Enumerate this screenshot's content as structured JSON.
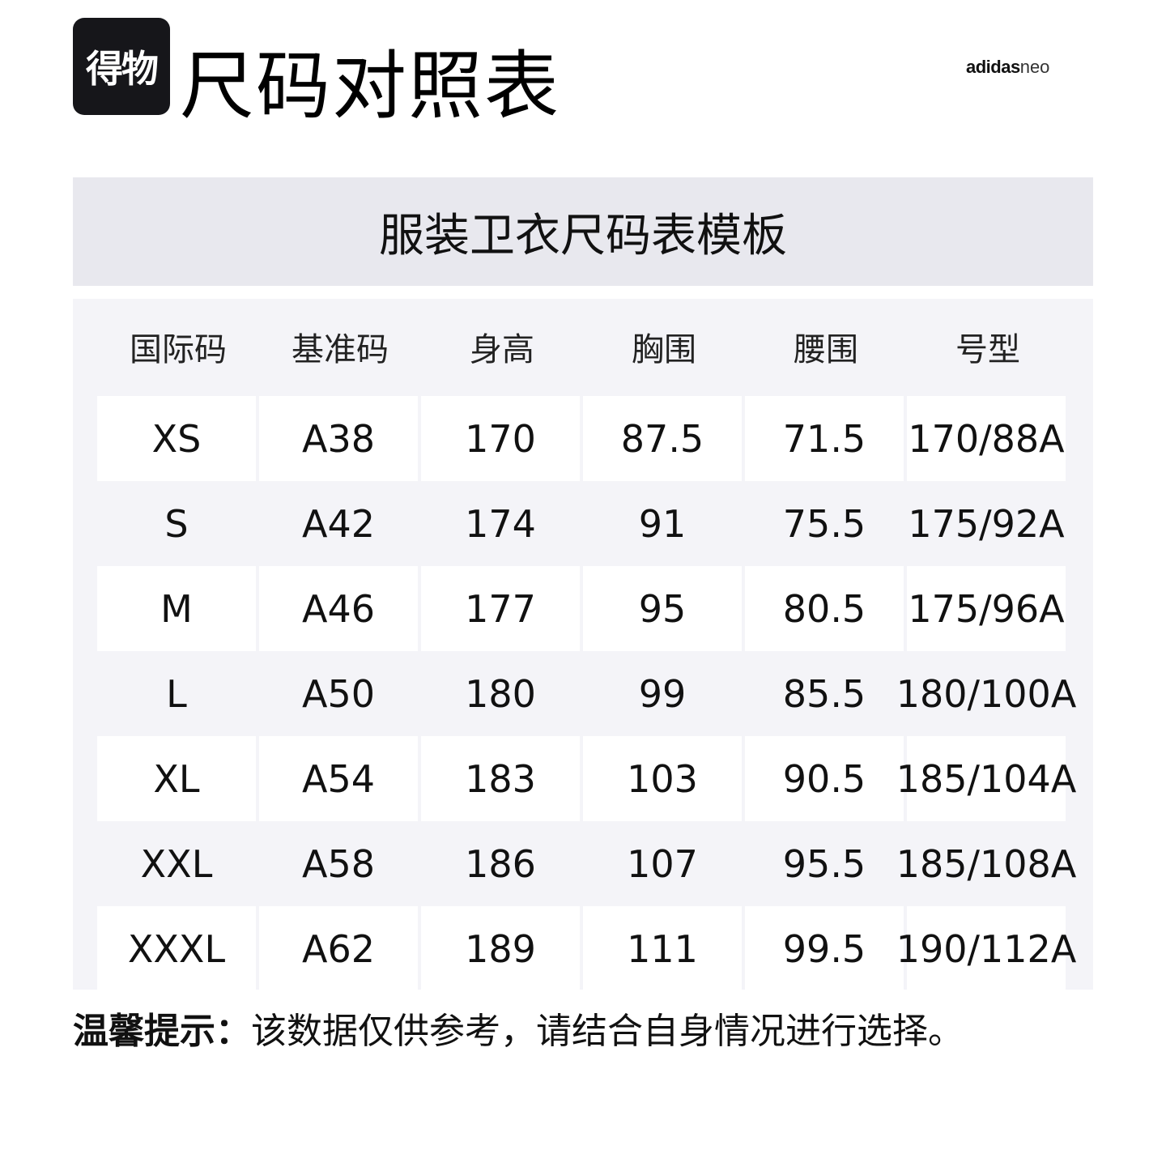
{
  "header": {
    "logo_text": "得物",
    "title": "尺码对照表",
    "brand_bold": "adidas",
    "brand_light": "neo"
  },
  "table": {
    "caption": "服装卫衣尺码表模板",
    "columns": [
      "国际码",
      "基准码",
      "身高",
      "胸围",
      "腰围",
      "号型"
    ],
    "rows": [
      [
        "XS",
        "A38",
        "170",
        "87.5",
        "71.5",
        "170/88A"
      ],
      [
        "S",
        "A42",
        "174",
        "91",
        "75.5",
        "175/92A"
      ],
      [
        "M",
        "A46",
        "177",
        "95",
        "80.5",
        "175/96A"
      ],
      [
        "L",
        "A50",
        "180",
        "99",
        "85.5",
        "180/100A"
      ],
      [
        "XL",
        "A54",
        "183",
        "103",
        "90.5",
        "185/104A"
      ],
      [
        "XXL",
        "A58",
        "186",
        "107",
        "95.5",
        "185/108A"
      ],
      [
        "XXXL",
        "A62",
        "189",
        "111",
        "99.5",
        "190/112A"
      ]
    ]
  },
  "note": {
    "label": "温馨提示：",
    "text": "该数据仅供参考，请结合自身情况进行选择。"
  },
  "colors": {
    "caption_band": "#e8e8ee",
    "table_bg": "#f4f4f8",
    "logo_bg": "#16161a"
  }
}
